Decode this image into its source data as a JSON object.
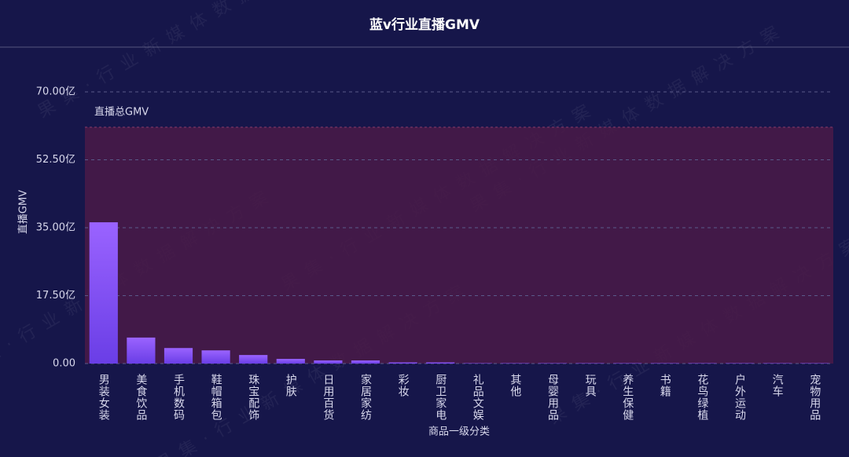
{
  "chart_data": {
    "type": "bar",
    "title": "蓝v行业直播GMV",
    "watermark": "果集·行业新媒体数据解决方案",
    "x_label": "商品一级分类",
    "y_label": "直播GMV",
    "categories": [
      "男装女装",
      "美食饮品",
      "手机数码",
      "鞋帽箱包",
      "珠宝配饰",
      "护肤",
      "日用百货",
      "家居家纺",
      "彩妆",
      "厨卫家电",
      "礼品文娱",
      "其他",
      "母婴用品",
      "玩具",
      "养生保健",
      "书籍",
      "花鸟绿植",
      "户外运动",
      "汽车",
      "宠物用品"
    ],
    "values": [
      36.4,
      6.7,
      4.0,
      3.4,
      2.2,
      1.2,
      0.8,
      0.8,
      0.3,
      0.3,
      0.1,
      0.1,
      0.1,
      0.1,
      0.1,
      0.1,
      0.1,
      0.1,
      0.1,
      0.1
    ],
    "color": "#8a55f5",
    "reference": {
      "label": "直播总GMV",
      "value": 60.9,
      "color": "#4a1a48"
    },
    "ylim": [
      0,
      70
    ],
    "yticks": [
      {
        "value": 0,
        "label": "0.00"
      },
      {
        "value": 17.5,
        "label": "17.50亿"
      },
      {
        "value": 35,
        "label": "35.00亿"
      },
      {
        "value": 52.5,
        "label": "52.50亿"
      },
      {
        "value": 70,
        "label": "70.00亿"
      }
    ],
    "grid": true
  }
}
